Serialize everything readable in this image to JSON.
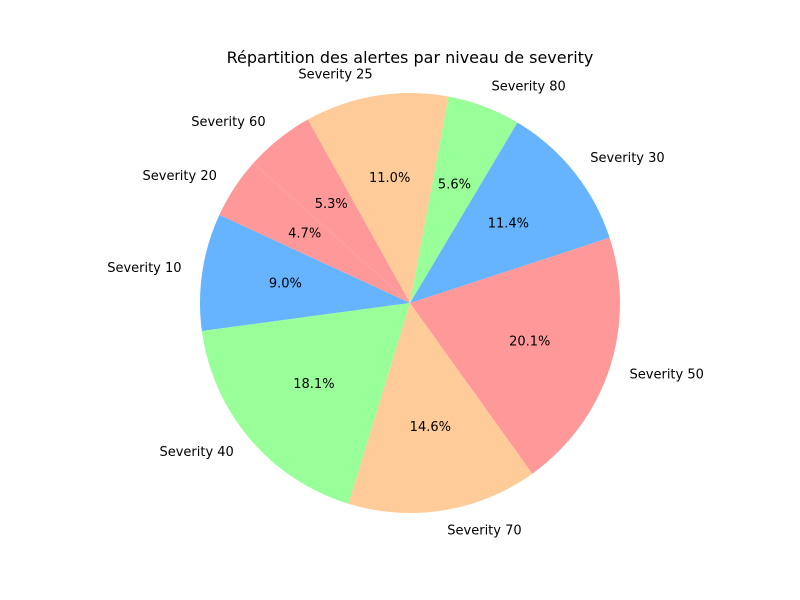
{
  "chart_data": {
    "type": "pie",
    "title": "Répartition des alertes par niveau de severity",
    "categories": [
      "Severity 10",
      "Severity 40",
      "Severity 70",
      "Severity 50",
      "Severity 30",
      "Severity 80",
      "Severity 25",
      "Severity 60",
      "Severity 20"
    ],
    "values": [
      9.0,
      18.1,
      14.6,
      20.1,
      11.4,
      5.6,
      11.0,
      5.3,
      4.7
    ],
    "value_labels": [
      "9.0%",
      "18.1%",
      "14.6%",
      "20.1%",
      "11.4%",
      "5.6%",
      "11.0%",
      "5.3%",
      "4.7%"
    ],
    "colors": [
      "#66b3ff",
      "#99ff99",
      "#ffcc99",
      "#ff9999",
      "#66b3ff",
      "#99ff99",
      "#ffcc99",
      "#ff9999",
      "#ff9999"
    ],
    "start_angle_deg": 155.2,
    "direction": "counterclockwise"
  }
}
